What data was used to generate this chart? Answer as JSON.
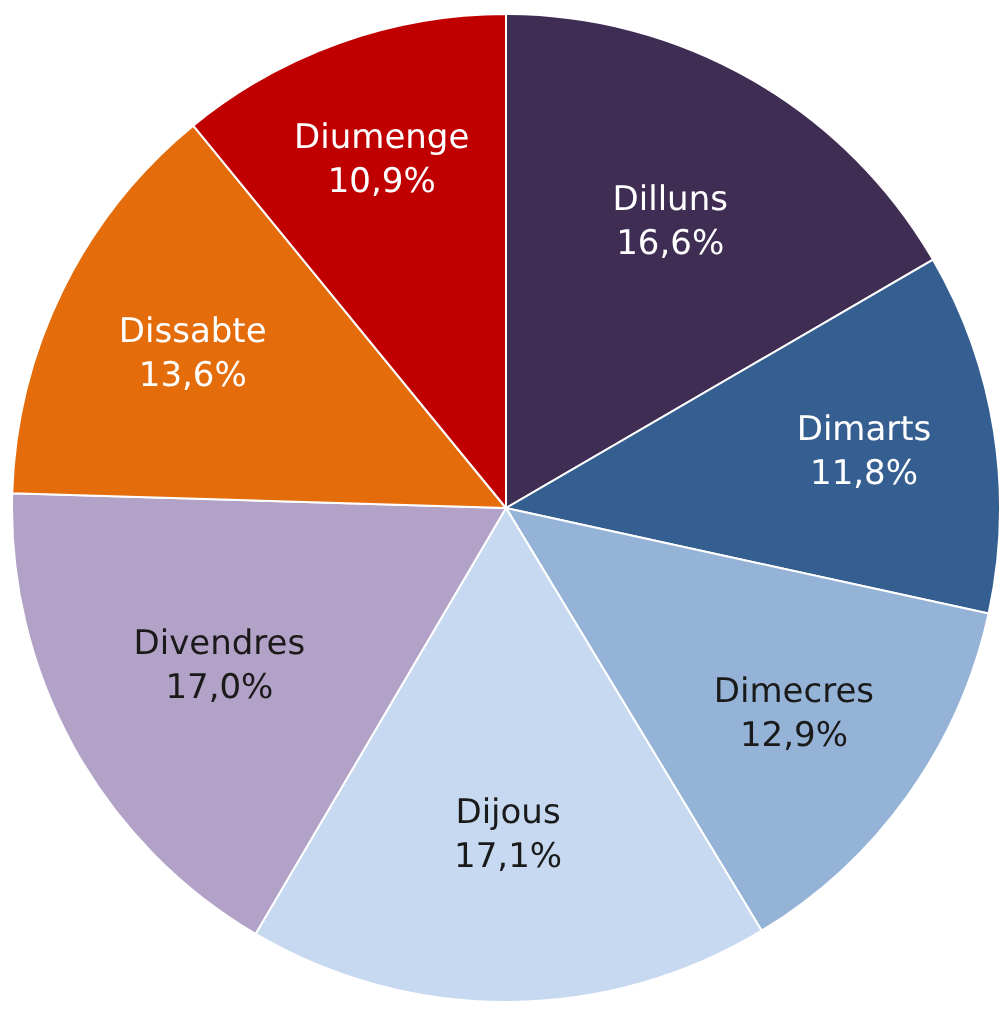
{
  "chart_data": {
    "type": "pie",
    "categories": [
      "Dilluns",
      "Dimarts",
      "Dimecres",
      "Dijous",
      "Divendres",
      "Dissabte",
      "Diumenge"
    ],
    "values": [
      16.6,
      11.8,
      12.9,
      17.1,
      17.0,
      13.6,
      10.9
    ],
    "colors": [
      "#3f2d54",
      "#365f91",
      "#95b3d7",
      "#c6d9f0",
      "#b3a2c7",
      "#e46c0a",
      "#c00000"
    ],
    "value_labels": [
      "16,6%",
      "11,8%",
      "12,9%",
      "17,1%",
      "17,0%",
      "13,6%",
      "10,9%"
    ],
    "legend": false
  }
}
